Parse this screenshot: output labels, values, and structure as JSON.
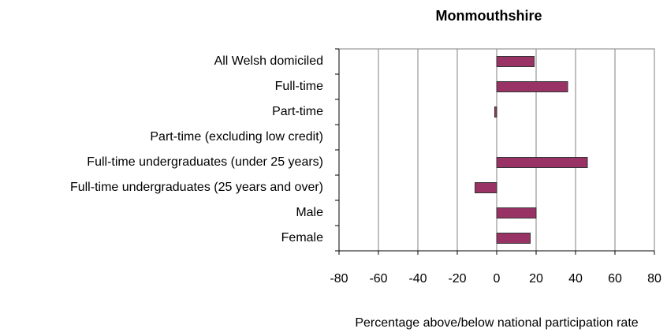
{
  "chart_data": {
    "type": "bar",
    "orientation": "horizontal",
    "title": "Monmouthshire",
    "categories": [
      "All Welsh domiciled",
      "Full-time",
      "Part-time",
      "Part-time (excluding low credit)",
      "Full-time undergraduates (under 25 years)",
      "Full-time undergraduates (25 years and over)",
      "Male",
      "Female"
    ],
    "values": [
      19,
      36,
      -1,
      0,
      46,
      -11,
      20,
      17
    ],
    "color": "#993366",
    "xlabel": "Percentage above/below national participation rate",
    "xlim": [
      -80,
      80
    ],
    "xticks": [
      -80,
      -60,
      -40,
      -20,
      0,
      20,
      40,
      60,
      80
    ],
    "grid": true
  }
}
